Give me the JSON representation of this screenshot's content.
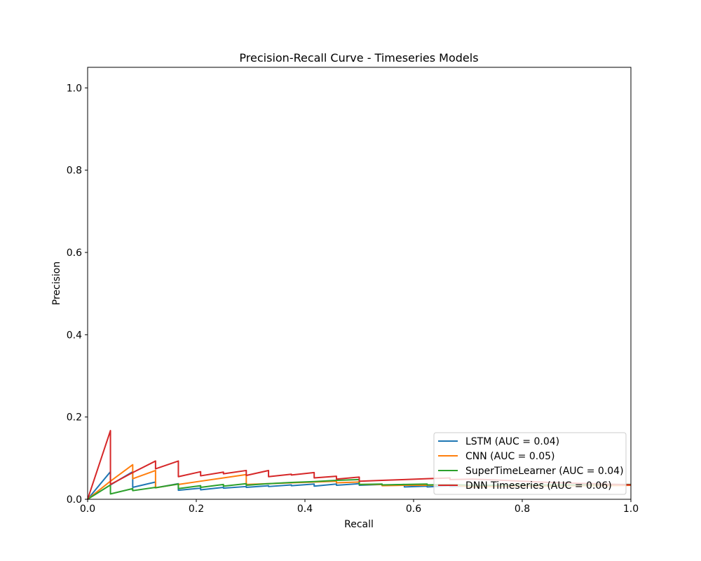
{
  "chart_data": {
    "type": "line",
    "title": "Precision-Recall Curve - Timeseries Models",
    "xlabel": "Recall",
    "ylabel": "Precision",
    "xlim": [
      0.0,
      1.0
    ],
    "ylim": [
      0.0,
      1.05
    ],
    "xticks": [
      0.0,
      0.2,
      0.4,
      0.6,
      0.8,
      1.0
    ],
    "yticks": [
      0.0,
      0.2,
      0.4,
      0.6,
      0.8,
      1.0
    ],
    "xtick_labels": [
      "0.0",
      "0.2",
      "0.4",
      "0.6",
      "0.8",
      "1.0"
    ],
    "ytick_labels": [
      "0.0",
      "0.2",
      "0.4",
      "0.6",
      "0.8",
      "1.0"
    ],
    "grid": false,
    "legend_position": "lower-right",
    "series": [
      {
        "name": "LSTM (AUC = 0.04)",
        "color": "#1f77b4",
        "x": [
          0,
          0.042,
          0.042,
          0.083,
          0.083,
          0.125,
          0.125,
          0.167,
          0.167,
          0.208,
          0.208,
          0.25,
          0.25,
          0.292,
          0.292,
          0.333,
          0.333,
          0.375,
          0.375,
          0.417,
          0.417,
          0.458,
          0.458,
          0.5,
          0.5,
          0.542,
          0.542,
          0.583,
          0.583,
          0.625,
          0.625,
          0.667,
          0.667,
          0.708,
          0.75,
          0.8,
          0.85,
          0.9,
          0.95,
          1.0
        ],
        "y": [
          0,
          0.067,
          0.035,
          0.067,
          0.029,
          0.042,
          0.028,
          0.038,
          0.022,
          0.027,
          0.023,
          0.029,
          0.027,
          0.031,
          0.029,
          0.033,
          0.031,
          0.035,
          0.033,
          0.037,
          0.032,
          0.037,
          0.034,
          0.038,
          0.034,
          0.036,
          0.034,
          0.036,
          0.03,
          0.032,
          0.03,
          0.033,
          0.031,
          0.032,
          0.033,
          0.033,
          0.034,
          0.034,
          0.035,
          0.035
        ]
      },
      {
        "name": "CNN (AUC = 0.05)",
        "color": "#ff7f0e",
        "x": [
          0,
          0.042,
          0.042,
          0.083,
          0.083,
          0.125,
          0.125,
          0.167,
          0.167,
          0.208,
          0.25,
          0.292,
          0.292,
          0.333,
          0.375,
          0.417,
          0.458,
          0.458,
          0.5,
          0.5,
          0.542,
          0.542,
          0.583,
          0.625,
          0.667,
          0.708,
          0.75,
          0.8,
          0.85,
          0.9,
          0.95,
          1.0
        ],
        "y": [
          0,
          0.044,
          0.044,
          0.084,
          0.05,
          0.07,
          0.028,
          0.037,
          0.036,
          0.044,
          0.052,
          0.06,
          0.036,
          0.038,
          0.04,
          0.042,
          0.044,
          0.04,
          0.042,
          0.036,
          0.036,
          0.033,
          0.034,
          0.034,
          0.035,
          0.03,
          0.031,
          0.032,
          0.032,
          0.033,
          0.033,
          0.034
        ]
      },
      {
        "name": "SuperTimeLearner (AUC = 0.04)",
        "color": "#2ca02c",
        "x": [
          0,
          0.042,
          0.042,
          0.083,
          0.083,
          0.125,
          0.125,
          0.167,
          0.167,
          0.208,
          0.208,
          0.25,
          0.25,
          0.292,
          0.292,
          0.333,
          0.375,
          0.417,
          0.458,
          0.5,
          0.5,
          0.542,
          0.542,
          0.583,
          0.625,
          0.625,
          0.667,
          0.708,
          0.75,
          0.8,
          0.85,
          0.9,
          0.95,
          1.0
        ],
        "y": [
          0,
          0.035,
          0.013,
          0.026,
          0.021,
          0.029,
          0.028,
          0.037,
          0.026,
          0.033,
          0.029,
          0.036,
          0.032,
          0.038,
          0.034,
          0.038,
          0.041,
          0.043,
          0.046,
          0.048,
          0.036,
          0.037,
          0.035,
          0.036,
          0.037,
          0.035,
          0.036,
          0.034,
          0.034,
          0.035,
          0.035,
          0.035,
          0.036,
          0.036
        ]
      },
      {
        "name": "DNN Timeseries (AUC = 0.06)",
        "color": "#d62728",
        "x": [
          0,
          0.042,
          0.042,
          0.083,
          0.125,
          0.125,
          0.167,
          0.167,
          0.208,
          0.208,
          0.25,
          0.25,
          0.292,
          0.292,
          0.333,
          0.333,
          0.375,
          0.375,
          0.417,
          0.417,
          0.458,
          0.458,
          0.5,
          0.5,
          0.542,
          0.583,
          0.625,
          0.667,
          0.667,
          0.708,
          0.75,
          0.8,
          0.85,
          0.9,
          0.95,
          1.0
        ],
        "y": [
          0,
          0.167,
          0.036,
          0.065,
          0.093,
          0.074,
          0.093,
          0.055,
          0.067,
          0.057,
          0.066,
          0.062,
          0.07,
          0.058,
          0.07,
          0.055,
          0.061,
          0.059,
          0.065,
          0.052,
          0.056,
          0.049,
          0.054,
          0.044,
          0.046,
          0.048,
          0.05,
          0.052,
          0.048,
          0.049,
          0.047,
          0.044,
          0.041,
          0.039,
          0.037,
          0.035
        ]
      }
    ]
  }
}
